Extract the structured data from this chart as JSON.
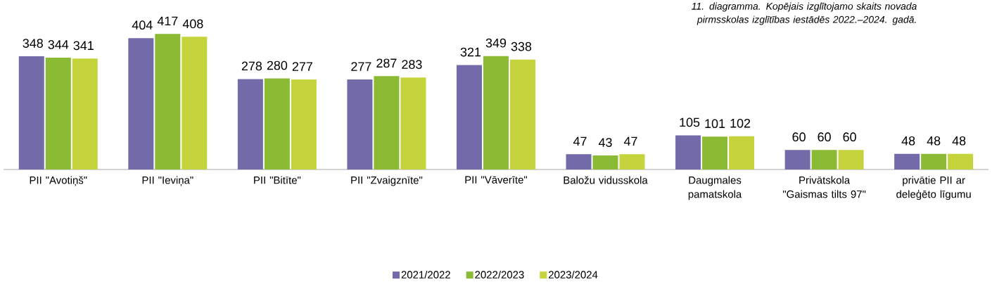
{
  "chart_data": {
    "type": "bar",
    "title": "11. diagramma. Kopējais izglītojamo skaits novada pirmsskolas izglītības iestādēs 2022.–2024. gadā.",
    "categories": [
      "PII \"Avotiņš\"",
      "PII \"Ieviņa\"",
      "PII \"Bitīte\"",
      "PII \"Zvaigznīte\"",
      "PII \"Vāverīte\"",
      "Baložu vidusskola",
      "Daugmales pamatskola",
      "Privātskola \"Gaismas tilts 97\"",
      "privātie PII ar deleģēto līgumu"
    ],
    "series": [
      {
        "name": "2021/2022",
        "color": "#736ba9",
        "values": [
          348,
          404,
          278,
          277,
          321,
          47,
          105,
          60,
          48
        ]
      },
      {
        "name": "2022/2023",
        "color": "#8bba35",
        "values": [
          344,
          417,
          280,
          287,
          349,
          43,
          101,
          60,
          48
        ]
      },
      {
        "name": "2023/2024",
        "color": "#c5d33c",
        "values": [
          341,
          408,
          277,
          283,
          338,
          47,
          102,
          60,
          48
        ]
      }
    ],
    "data_labels": true,
    "legend": "bottom",
    "grid": false
  }
}
